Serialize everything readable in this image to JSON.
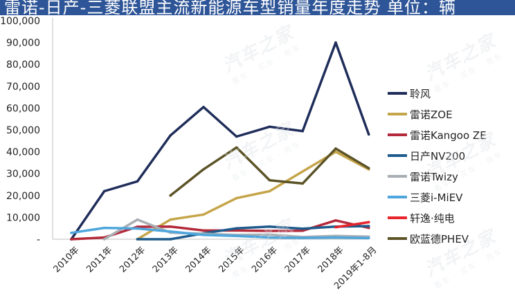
{
  "title": "雷诺-日产-三菱联盟主流新能源车型销量年度走势  单位：辆",
  "watermark": {
    "brand": "汽车之家",
    "tagline": "看车 · 买车 · 用车"
  },
  "chart_data": {
    "type": "line",
    "title": "雷诺-日产-三菱联盟主流新能源车型销量年度走势  单位：辆",
    "categories": [
      "2010年",
      "2011年",
      "2012年",
      "2013年",
      "2014年",
      "2015年",
      "2016年",
      "2017年",
      "2018年",
      "2019年1-8月"
    ],
    "ylim": [
      0,
      100000
    ],
    "yticks": [
      0,
      10000,
      20000,
      30000,
      40000,
      50000,
      60000,
      70000,
      80000,
      90000,
      100000
    ],
    "ytick_labels": [
      "-",
      "10,000",
      "20,000",
      "30,000",
      "40,000",
      "50,000",
      "60,000",
      "70,000",
      "80,000",
      "90,000",
      "100,000"
    ],
    "grid": false,
    "legend_position": "right",
    "series": [
      {
        "name": "聆风",
        "color": "#1f2d5a",
        "values": [
          0,
          22000,
          26500,
          47500,
          60500,
          47000,
          51500,
          49500,
          90000,
          48000
        ]
      },
      {
        "name": "雷诺ZOE",
        "color": "#c5a54a",
        "values": [
          null,
          null,
          0,
          9000,
          11300,
          18800,
          22000,
          31000,
          40000,
          32000
        ]
      },
      {
        "name": "雷诺Kangoo ZE",
        "color": "#b3293a",
        "values": [
          0,
          800,
          5700,
          5800,
          4000,
          4000,
          3800,
          3900,
          8600,
          5200
        ]
      },
      {
        "name": "日产NV200",
        "color": "#1f5b8c",
        "values": [
          null,
          null,
          0,
          0,
          2700,
          5000,
          5800,
          4800,
          5800,
          6000
        ]
      },
      {
        "name": "雷诺Twizy",
        "color": "#a8aeb3",
        "values": [
          null,
          0,
          9000,
          3000,
          2500,
          2000,
          2100,
          1000,
          1500,
          1200
        ]
      },
      {
        "name": "三菱i-MiEV",
        "color": "#4ea6dc",
        "values": [
          2900,
          5200,
          4900,
          3500,
          2000,
          1500,
          800,
          600,
          800,
          500
        ]
      },
      {
        "name": "轩逸·纯电",
        "color": "#e8242c",
        "values": [
          null,
          null,
          null,
          null,
          null,
          null,
          null,
          null,
          5500,
          7800
        ]
      },
      {
        "name": "欧蓝德PHEV",
        "color": "#5c5427",
        "values": [
          null,
          null,
          null,
          20000,
          32000,
          42000,
          27000,
          25500,
          41500,
          32500
        ]
      }
    ]
  }
}
